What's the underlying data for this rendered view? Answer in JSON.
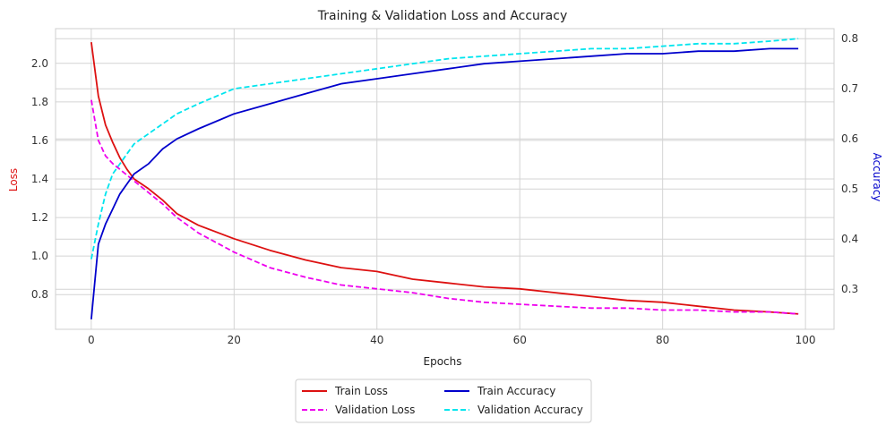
{
  "chart_data": {
    "type": "line",
    "title": "Training & Validation Loss and Accuracy",
    "xlabel": "Epochs",
    "ylabel_left": "Loss",
    "ylabel_right": "Accuracy",
    "xlim": [
      -5,
      104
    ],
    "ylim_left": [
      0.62,
      2.18
    ],
    "ylim_right": [
      0.22,
      0.82
    ],
    "x_ticks": [
      0,
      20,
      40,
      60,
      80,
      100
    ],
    "y_ticks_left": [
      0.8,
      1.0,
      1.2,
      1.4,
      1.6,
      1.8,
      2.0
    ],
    "y_ticks_right": [
      0.3,
      0.4,
      0.5,
      0.6,
      0.7,
      0.8
    ],
    "grid": true,
    "legend_position": "bottom-center",
    "colors": {
      "train_loss": "#dd1111",
      "val_loss": "#ee00ee",
      "train_acc": "#0000cc",
      "val_acc": "#00e5ee",
      "grid": "#d4d4d4",
      "axis_left_label": "#dd1111",
      "axis_right_label": "#0000cc"
    },
    "x_points": [
      0,
      1,
      2,
      3,
      4,
      5,
      6,
      8,
      10,
      12,
      15,
      20,
      25,
      30,
      35,
      40,
      45,
      50,
      55,
      60,
      65,
      70,
      75,
      80,
      85,
      90,
      95,
      99
    ],
    "series": [
      {
        "name": "Train Loss",
        "axis": "left",
        "dash": "solid",
        "values": [
          2.11,
          1.83,
          1.68,
          1.59,
          1.51,
          1.45,
          1.4,
          1.35,
          1.29,
          1.22,
          1.16,
          1.09,
          1.03,
          0.98,
          0.94,
          0.92,
          0.88,
          0.86,
          0.84,
          0.83,
          0.81,
          0.79,
          0.77,
          0.76,
          0.74,
          0.72,
          0.71,
          0.7
        ]
      },
      {
        "name": "Validation Loss",
        "axis": "left",
        "dash": "dashed",
        "values": [
          1.81,
          1.6,
          1.52,
          1.48,
          1.45,
          1.42,
          1.39,
          1.33,
          1.27,
          1.2,
          1.12,
          1.02,
          0.94,
          0.89,
          0.85,
          0.83,
          0.81,
          0.78,
          0.76,
          0.75,
          0.74,
          0.73,
          0.73,
          0.72,
          0.72,
          0.71,
          0.71,
          0.7
        ]
      },
      {
        "name": "Train Accuracy",
        "axis": "right",
        "dash": "solid",
        "values": [
          0.24,
          0.39,
          0.43,
          0.46,
          0.49,
          0.51,
          0.53,
          0.55,
          0.58,
          0.6,
          0.62,
          0.65,
          0.67,
          0.69,
          0.71,
          0.72,
          0.73,
          0.74,
          0.75,
          0.755,
          0.76,
          0.765,
          0.77,
          0.77,
          0.775,
          0.775,
          0.78,
          0.78
        ]
      },
      {
        "name": "Validation Accuracy",
        "axis": "right",
        "dash": "dashed",
        "values": [
          0.36,
          0.43,
          0.49,
          0.53,
          0.55,
          0.57,
          0.59,
          0.61,
          0.63,
          0.65,
          0.67,
          0.7,
          0.71,
          0.72,
          0.73,
          0.74,
          0.75,
          0.76,
          0.765,
          0.77,
          0.775,
          0.78,
          0.78,
          0.785,
          0.79,
          0.79,
          0.795,
          0.8
        ]
      }
    ]
  }
}
